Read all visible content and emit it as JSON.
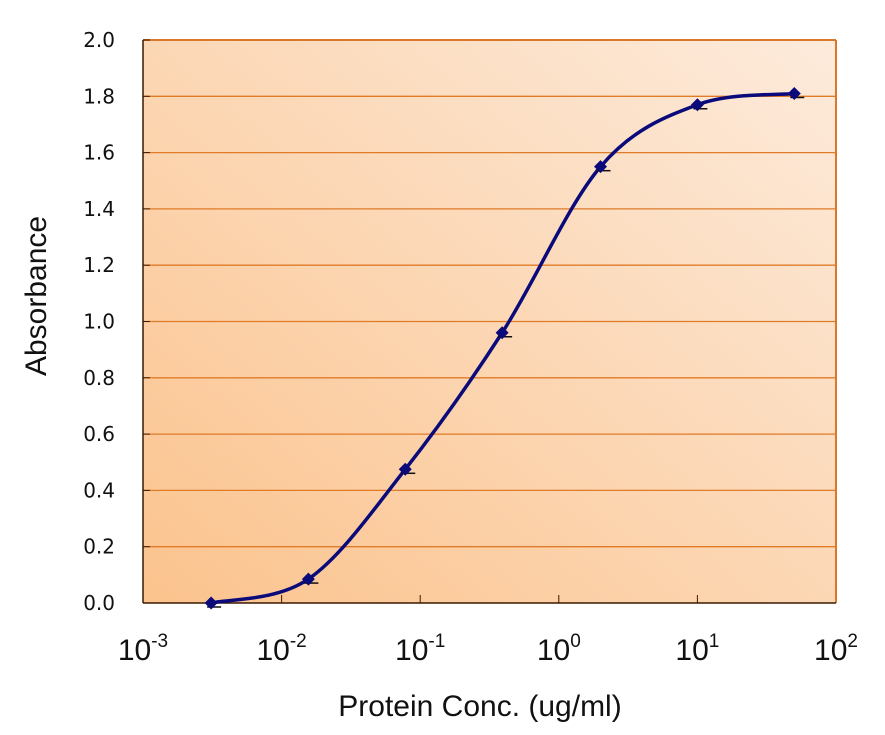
{
  "chart_data": {
    "type": "line",
    "title": "",
    "xlabel": "Protein Conc. (ug/ml)",
    "ylabel": "Absorbance",
    "xscale": "log",
    "xlim": [
      0.001,
      100
    ],
    "ylim": [
      0.0,
      2.0
    ],
    "grid": "horizontal",
    "legend": "none",
    "yticks": [
      "0.0",
      "0.2",
      "0.4",
      "0.6",
      "0.8",
      "1.0",
      "1.2",
      "1.4",
      "1.6",
      "1.8",
      "2.0"
    ],
    "xticks": [
      {
        "base": "10",
        "exp": "-3"
      },
      {
        "base": "10",
        "exp": "-2"
      },
      {
        "base": "10",
        "exp": "-1"
      },
      {
        "base": "10",
        "exp": "0"
      },
      {
        "base": "10",
        "exp": "1"
      },
      {
        "base": "10",
        "exp": "2"
      }
    ],
    "series": [
      {
        "name": "Absorbance",
        "x": [
          0.0031,
          0.0156,
          0.078,
          0.39,
          2.0,
          10.0,
          50.0
        ],
        "y": [
          0.0,
          0.085,
          0.475,
          0.96,
          1.55,
          1.77,
          1.81
        ],
        "marker": "diamond",
        "smooth": true
      }
    ],
    "colors": {
      "line": "#0a0a7a",
      "grid": "#e07b28",
      "frame": "#d9782a",
      "bg_dark": "#fbc38d",
      "bg_light": "#fdebdc"
    }
  }
}
